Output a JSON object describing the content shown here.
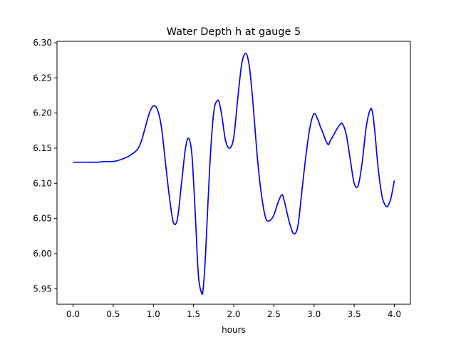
{
  "chart_data": {
    "type": "line",
    "title": "Water Depth h at gauge 5",
    "xlabel": "hours",
    "ylabel": "",
    "xlim": [
      -0.2,
      4.2
    ],
    "ylim": [
      5.928,
      6.302
    ],
    "xticks": [
      0.0,
      0.5,
      1.0,
      1.5,
      2.0,
      2.5,
      3.0,
      3.5,
      4.0
    ],
    "xtick_labels": [
      "0.0",
      "0.5",
      "1.0",
      "1.5",
      "2.0",
      "2.5",
      "3.0",
      "3.5",
      "4.0"
    ],
    "yticks": [
      5.95,
      6.0,
      6.05,
      6.1,
      6.15,
      6.2,
      6.25,
      6.3
    ],
    "ytick_labels": [
      "5.95",
      "6.00",
      "6.05",
      "6.10",
      "6.15",
      "6.20",
      "6.25",
      "6.30"
    ],
    "grid": false,
    "line_color": "#0000ff",
    "series": [
      {
        "name": "",
        "x": [
          0.0,
          0.1,
          0.2,
          0.3,
          0.4,
          0.5,
          0.6,
          0.7,
          0.8,
          0.85,
          0.9,
          0.95,
          1.0,
          1.05,
          1.1,
          1.15,
          1.2,
          1.25,
          1.3,
          1.35,
          1.4,
          1.44,
          1.48,
          1.52,
          1.56,
          1.6,
          1.62,
          1.65,
          1.7,
          1.75,
          1.8,
          1.83,
          1.86,
          1.9,
          1.95,
          2.0,
          2.05,
          2.1,
          2.15,
          2.19,
          2.22,
          2.25,
          2.3,
          2.35,
          2.4,
          2.45,
          2.5,
          2.55,
          2.6,
          2.63,
          2.66,
          2.7,
          2.75,
          2.8,
          2.85,
          2.9,
          2.95,
          3.0,
          3.05,
          3.08,
          3.1,
          3.15,
          3.18,
          3.2,
          3.25,
          3.3,
          3.35,
          3.4,
          3.45,
          3.5,
          3.55,
          3.6,
          3.65,
          3.7,
          3.73,
          3.76,
          3.8,
          3.85,
          3.9,
          3.93,
          3.96,
          4.0
        ],
        "y": [
          6.13,
          6.13,
          6.13,
          6.13,
          6.131,
          6.131,
          6.134,
          6.139,
          6.148,
          6.16,
          6.18,
          6.2,
          6.21,
          6.205,
          6.18,
          6.13,
          6.08,
          6.044,
          6.05,
          6.1,
          6.15,
          6.164,
          6.14,
          6.06,
          5.97,
          5.944,
          5.95,
          6.0,
          6.12,
          6.2,
          6.218,
          6.21,
          6.19,
          6.16,
          6.15,
          6.165,
          6.22,
          6.27,
          6.285,
          6.27,
          6.24,
          6.2,
          6.13,
          6.08,
          6.05,
          6.047,
          6.055,
          6.072,
          6.084,
          6.075,
          6.06,
          6.042,
          6.028,
          6.04,
          6.09,
          6.14,
          6.18,
          6.199,
          6.19,
          6.18,
          6.175,
          6.16,
          6.155,
          6.16,
          6.17,
          6.18,
          6.185,
          6.17,
          6.135,
          6.1,
          6.097,
          6.13,
          6.18,
          6.205,
          6.2,
          6.17,
          6.12,
          6.08,
          6.067,
          6.07,
          6.08,
          6.104
        ]
      }
    ]
  }
}
